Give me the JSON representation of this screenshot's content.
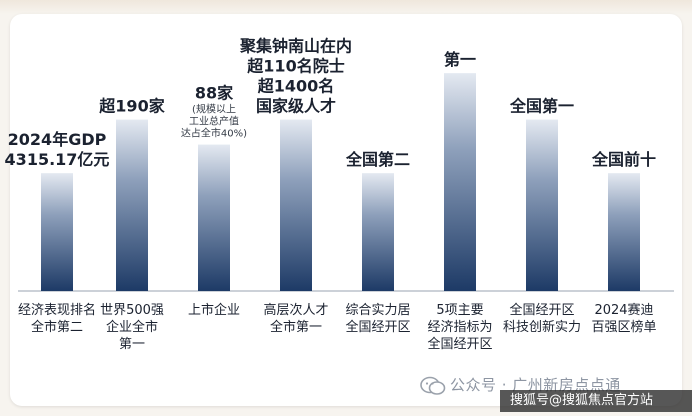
{
  "chart_data": {
    "type": "bar",
    "categories": [
      [
        "经济表现排名",
        "全市第二"
      ],
      [
        "世界500强",
        "企业全市",
        "第一"
      ],
      [
        "上市企业"
      ],
      [
        "高层次人才",
        "全市第一"
      ],
      [
        "综合实力居",
        "全国经开区"
      ],
      [
        "5项主要",
        "经济指标为",
        "全国经开区"
      ],
      [
        "全国经开区",
        "科技创新实力"
      ],
      [
        "2024赛迪",
        "百强区榜单"
      ]
    ],
    "values": [
      33,
      48,
      41,
      48,
      33,
      61,
      48,
      33
    ],
    "ylim": [
      0,
      70
    ],
    "value_labels": [
      [
        "2024年GDP",
        "4315.17亿元"
      ],
      [
        "超190家"
      ],
      [
        "88家"
      ],
      [
        "聚集钟南山在内",
        "超110名院士",
        "超1400名",
        "国家级人才"
      ],
      [
        "全国第二"
      ],
      [
        "第一"
      ],
      [
        "全国第一"
      ],
      [
        "全国前十"
      ]
    ],
    "value_notes": [
      null,
      null,
      [
        "(规模以上",
        "工业总产值",
        "达占全市40%)"
      ],
      null,
      null,
      null,
      null,
      null
    ],
    "grid": false,
    "bar_gradient": [
      "#e4e9f1",
      "#1d3a66"
    ]
  },
  "watermark": {
    "account_text": "公众号 · 广州新房点点通",
    "bar_text": "搜狐号@搜狐焦点官方站"
  }
}
